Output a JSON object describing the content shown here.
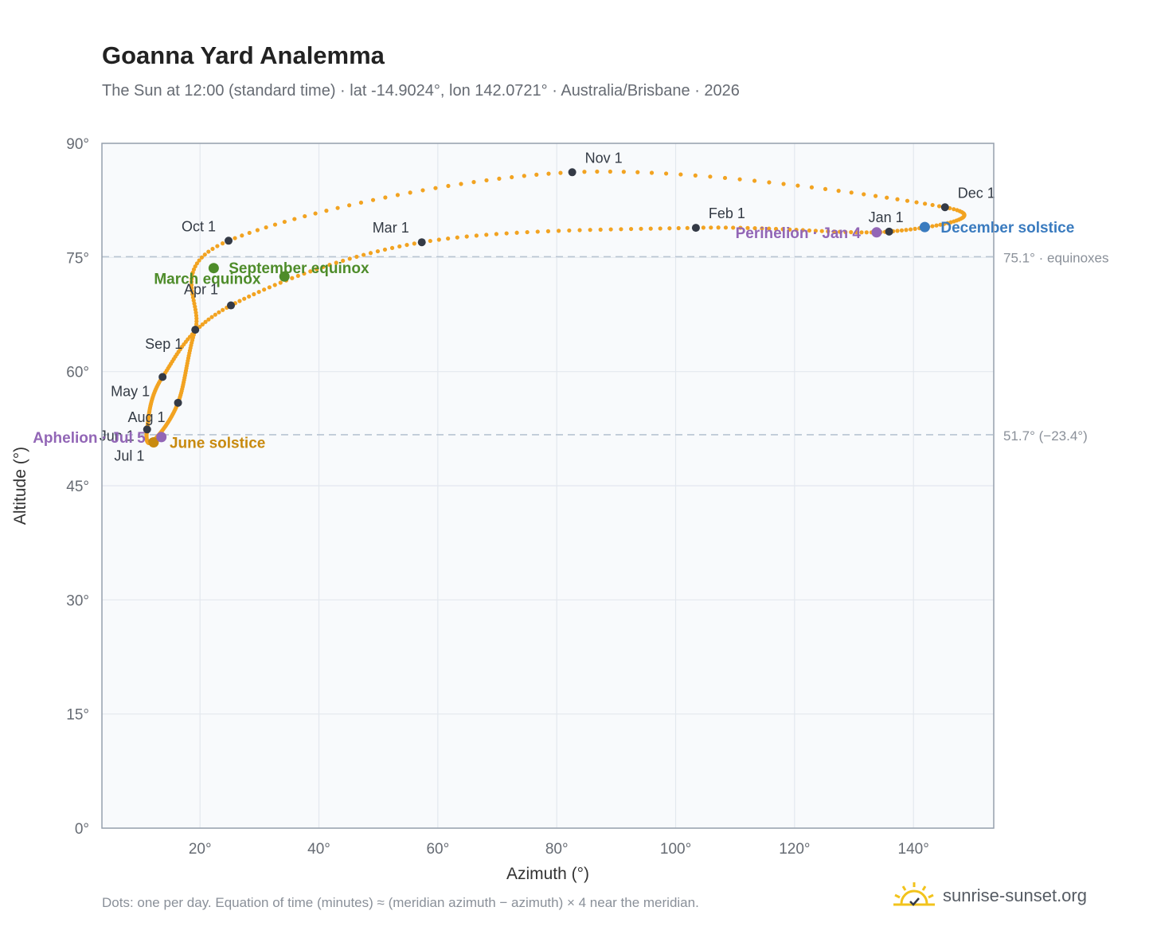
{
  "title": "Goanna Yard Analemma",
  "subtitle": "The Sun at 12:00 (standard time) · lat -14.9024°, lon 142.0721° · Australia/Brisbane · 2026",
  "footnote": "Dots: one per day. Equation of time (minutes) ≈ (meridian azimuth − azimuth) × 4 near the meridian.",
  "brand": {
    "text": "sunrise-sunset.org",
    "icon": "sun-logo-icon"
  },
  "colors": {
    "curve": "#f2a321",
    "month_marker": "#343a46",
    "equinox": "#4e8c2a",
    "june_solstice": "#c88a0f",
    "december_solstice": "#3a7bbf",
    "apsis": "#9266b6",
    "reference_line": "#b8c4d2",
    "plot_bg": "#f8fafc",
    "grid": "#e3e8ee",
    "frame": "#96a0ad"
  },
  "chart_data": {
    "type": "scatter",
    "xlabel": "Azimuth (°)",
    "ylabel": "Altitude (°)",
    "xlim": [
      3.5,
      153.5
    ],
    "ylim": [
      0,
      90
    ],
    "xticks": [
      20,
      40,
      60,
      80,
      100,
      120,
      140
    ],
    "yticks": [
      0,
      15,
      30,
      45,
      60,
      75,
      90
    ],
    "grid": true,
    "reference_lines": [
      {
        "y": 75.1,
        "label": "75.1° · equinoxes"
      },
      {
        "y": 51.7,
        "label": "51.7° (−23.4°)"
      }
    ],
    "month_markers": [
      {
        "label": "Jan 1",
        "az": 135.9,
        "alt": 78.4
      },
      {
        "label": "Feb 1",
        "az": 103.4,
        "alt": 78.9
      },
      {
        "label": "Mar 1",
        "az": 57.3,
        "alt": 77.0
      },
      {
        "label": "Apr 1",
        "az": 25.2,
        "alt": 68.7
      },
      {
        "label": "May 1",
        "az": 13.7,
        "alt": 59.3
      },
      {
        "label": "Jun 1",
        "az": 11.1,
        "alt": 52.4
      },
      {
        "label": "Jul 1",
        "az": 12.0,
        "alt": 50.8
      },
      {
        "label": "Aug 1",
        "az": 16.3,
        "alt": 55.9
      },
      {
        "label": "Sep 1",
        "az": 19.2,
        "alt": 65.5
      },
      {
        "label": "Oct 1",
        "az": 24.8,
        "alt": 77.2
      },
      {
        "label": "Nov 1",
        "az": 82.6,
        "alt": 86.2
      },
      {
        "label": "Dec 1",
        "az": 145.3,
        "alt": 81.6
      }
    ],
    "events": [
      {
        "label": "March equinox",
        "az": 22.3,
        "alt": 73.6,
        "kind": "equinox"
      },
      {
        "label": "September equinox",
        "az": 34.2,
        "alt": 72.5,
        "kind": "equinox"
      },
      {
        "label": "June solstice",
        "az": 12.2,
        "alt": 50.7,
        "kind": "june_solstice"
      },
      {
        "label": "December solstice",
        "az": 141.9,
        "alt": 79.0,
        "kind": "december_solstice"
      },
      {
        "label": "Perihelion · Jan 4",
        "az": 133.8,
        "alt": 78.3,
        "kind": "apsis"
      },
      {
        "label": "Aphelion · Jul 5",
        "az": 13.5,
        "alt": 51.4,
        "kind": "apsis"
      }
    ]
  }
}
